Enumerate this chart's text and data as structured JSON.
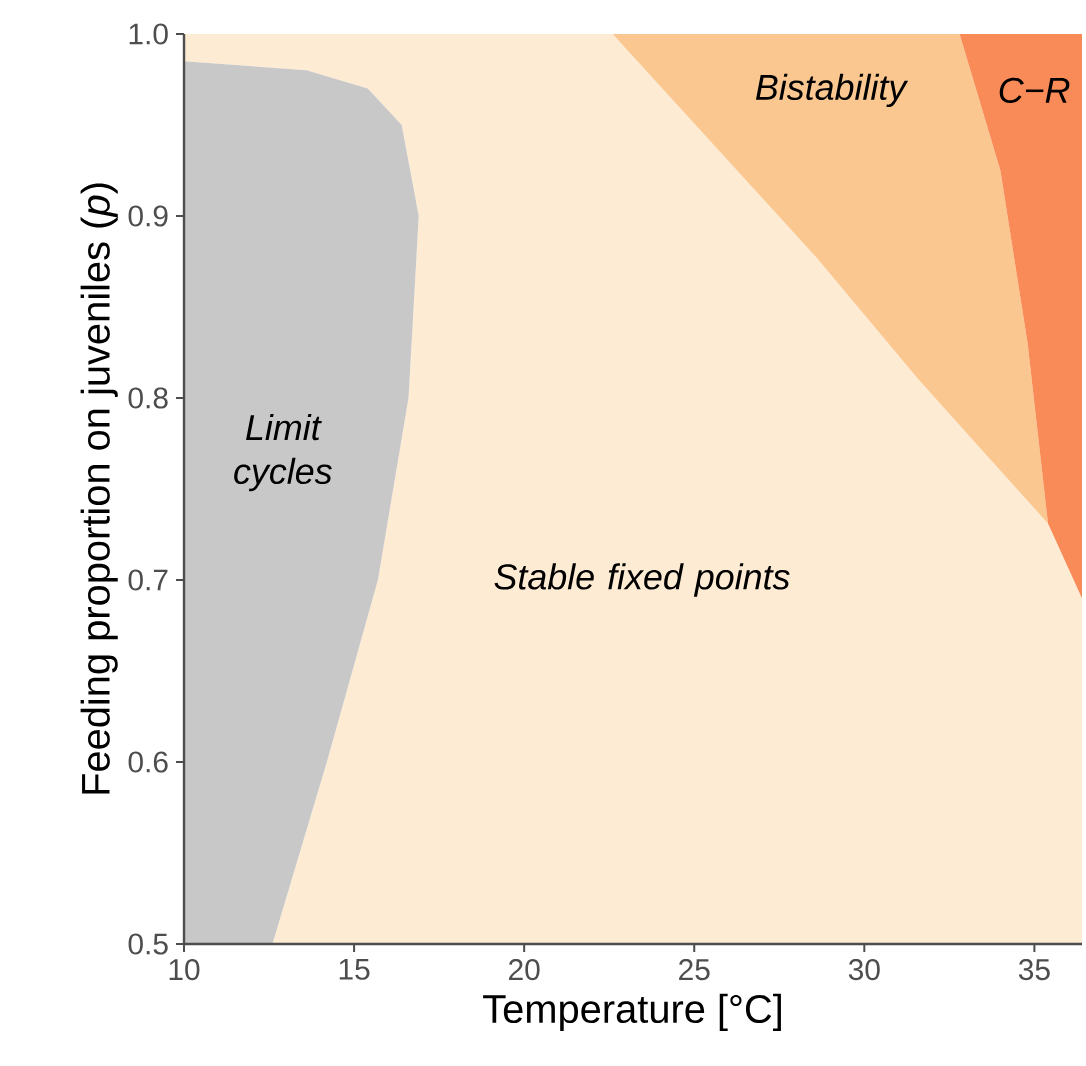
{
  "chart_data": {
    "type": "area",
    "xlabel": "Temperature [°C]",
    "ylabel": "Feeding proportion on juveniles (*p*)",
    "xlim": [
      10,
      36.4
    ],
    "ylim": [
      0.5,
      1.0
    ],
    "xticks": [
      10,
      15,
      20,
      25,
      30,
      35
    ],
    "yticks": [
      0.5,
      0.6,
      0.7,
      0.8,
      0.9,
      {
        "value": 1.0,
        "label": "1.0"
      }
    ],
    "series": [
      {
        "name": "Stable fixed points",
        "color": "#fdebd3",
        "x": [
          12.6,
          36.4,
          36.4,
          35.4,
          31.6,
          28.6,
          22.6,
          10,
          10,
          13.6,
          15.4,
          16.4,
          16.9,
          16.6,
          15.7,
          14.2
        ],
        "values": [
          0.5,
          0.5,
          0.69,
          0.731,
          0.81,
          0.877,
          1.0,
          1.0,
          0.985,
          0.98,
          0.97,
          0.95,
          0.9,
          0.8,
          0.7,
          0.6
        ]
      },
      {
        "name": "Limit cycles",
        "color": "#c8c8c8",
        "x": [
          10,
          12.6,
          14.2,
          15.7,
          16.6,
          16.9,
          16.4,
          15.4,
          13.6,
          10
        ],
        "values": [
          0.5,
          0.5,
          0.6,
          0.7,
          0.8,
          0.9,
          0.95,
          0.97,
          0.98,
          0.985
        ]
      },
      {
        "name": "Bistability",
        "color": "#f9c78f",
        "x": [
          22.6,
          28.6,
          31.6,
          35.4,
          34.8,
          34.0,
          32.8
        ],
        "values": [
          1.0,
          0.877,
          0.81,
          0.731,
          0.83,
          0.925,
          1.0
        ]
      },
      {
        "name": "C−R",
        "color": "#f98b58",
        "x": [
          32.8,
          34.0,
          34.8,
          35.4,
          36.4,
          36.4
        ],
        "values": [
          1.0,
          0.925,
          0.83,
          0.731,
          0.69,
          1.0
        ]
      }
    ]
  }
}
